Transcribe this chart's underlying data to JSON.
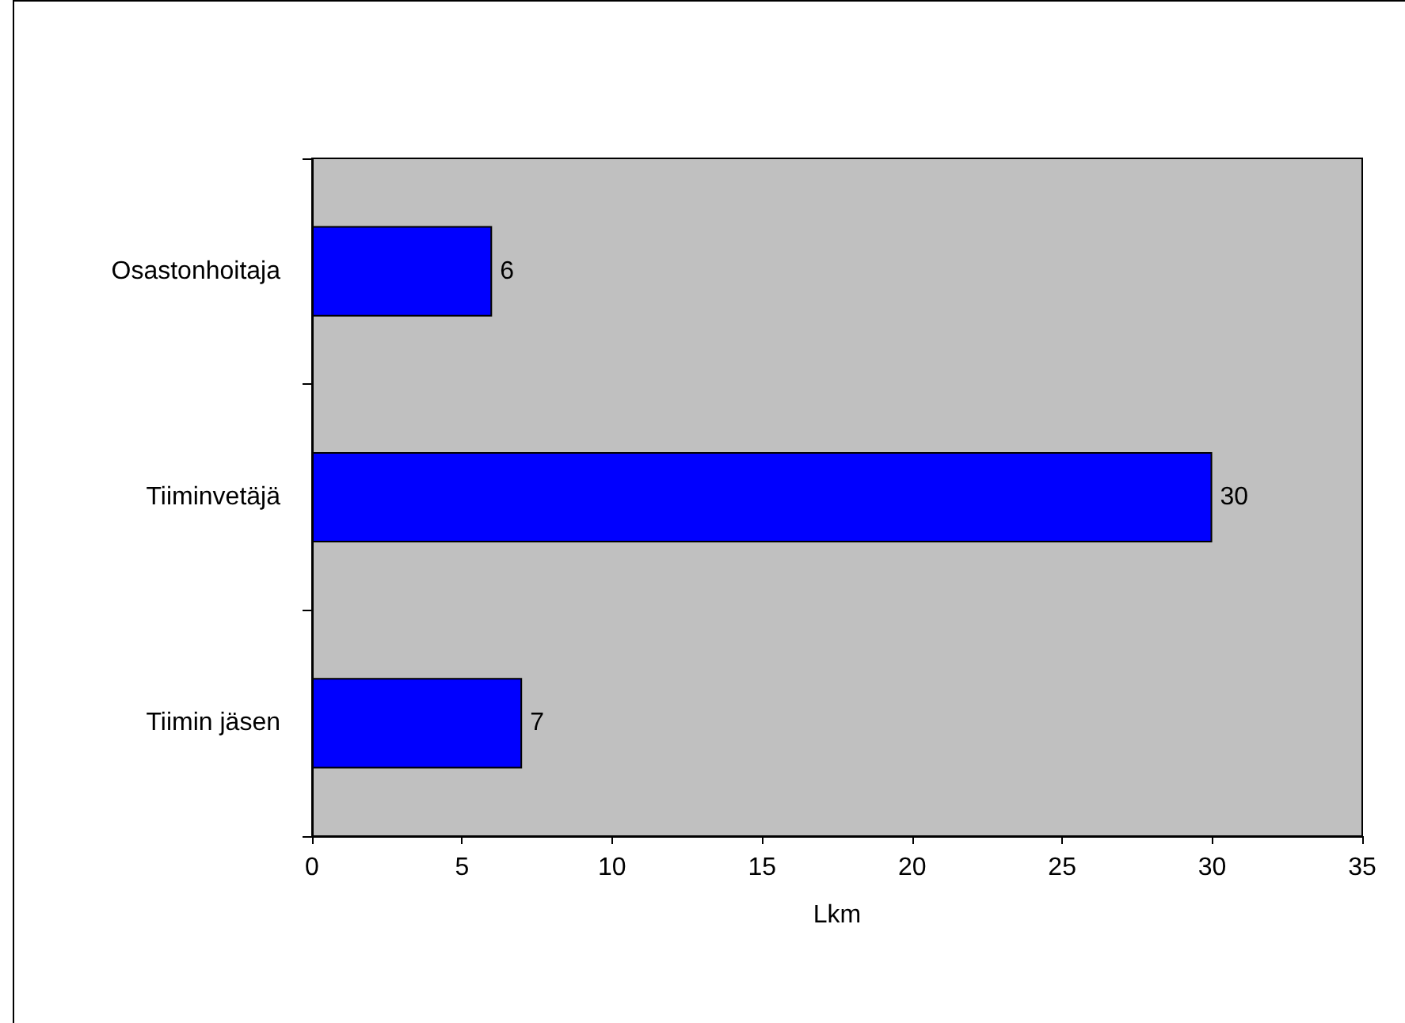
{
  "chart_data": {
    "type": "bar",
    "orientation": "horizontal",
    "xlabel": "Lkm",
    "categories": [
      "Osastonhoitaja",
      "Tiiminvetäjä",
      "Tiimin jäsen"
    ],
    "values": [
      6,
      30,
      7
    ],
    "color": "#0000ff",
    "xlim": [
      0,
      35
    ],
    "xticks": [
      0,
      5,
      10,
      15,
      20,
      25,
      30,
      35
    ],
    "grid": false,
    "data_labels": true
  }
}
